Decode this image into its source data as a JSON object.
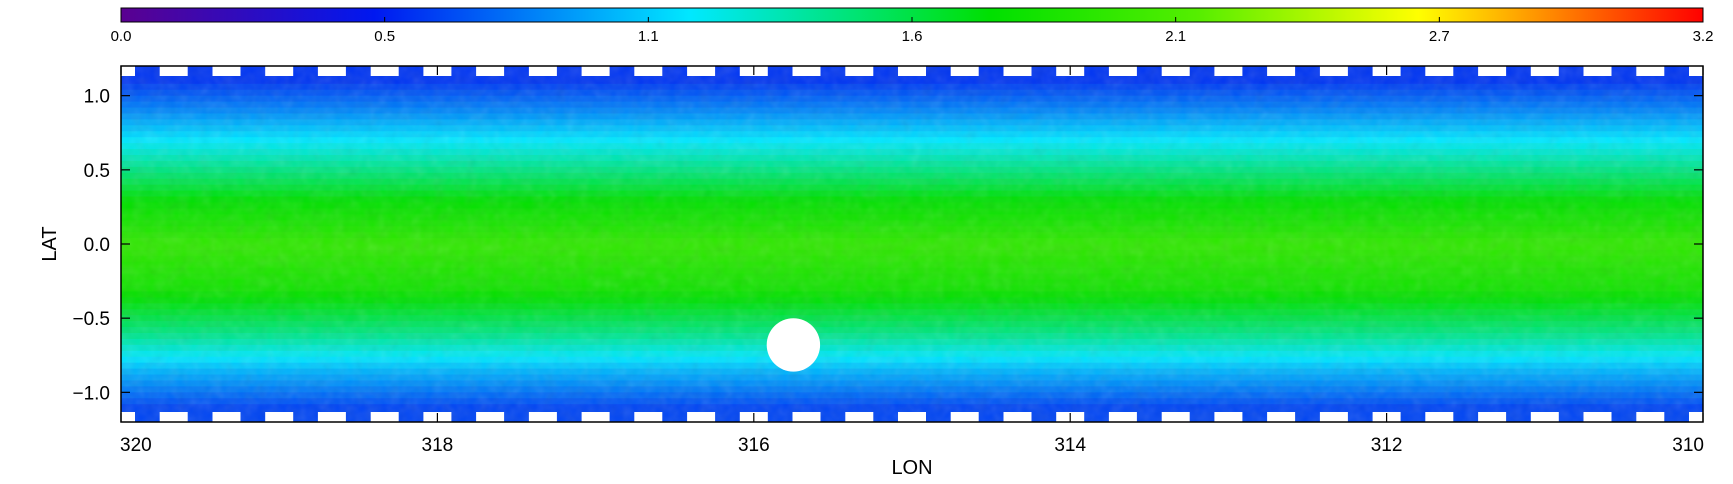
{
  "chart_data": {
    "type": "heatmap",
    "xlabel": "LON",
    "ylabel": "LAT",
    "xlim": [
      320,
      310
    ],
    "ylim": [
      -1.2,
      1.2
    ],
    "x_ticks": [
      "320",
      "318",
      "316",
      "314",
      "312",
      "310"
    ],
    "x_tick_values": [
      320,
      318,
      316,
      314,
      312,
      310
    ],
    "y_ticks": [
      "1.0",
      "0.5",
      "0.0",
      "−0.5",
      "−1.0"
    ],
    "y_tick_values": [
      1.0,
      0.5,
      0.0,
      -0.5,
      -1.0
    ],
    "colorbar": {
      "range": [
        0.0,
        3.2
      ],
      "tick_labels": [
        "0.0",
        "0.5",
        "1.1",
        "1.6",
        "2.1",
        "2.7",
        "3.2"
      ],
      "tick_values": [
        0.0,
        0.5,
        1.1,
        1.6,
        2.1,
        2.7,
        3.2
      ],
      "colormap": "rainbow",
      "colors": [
        "#5a0090",
        "#0018f0",
        "#00e8ff",
        "#00e000",
        "#ffff00",
        "#ff0000"
      ]
    },
    "value_bands_by_latitude": [
      {
        "lat": 1.1,
        "value": 0.6
      },
      {
        "lat": 0.9,
        "value": 0.85
      },
      {
        "lat": 0.6,
        "value": 1.3
      },
      {
        "lat": 0.3,
        "value": 1.75
      },
      {
        "lat": 0.0,
        "value": 2.0
      },
      {
        "lat": -0.3,
        "value": 1.85
      },
      {
        "lat": -0.6,
        "value": 1.45
      },
      {
        "lat": -0.85,
        "value": 1.0
      },
      {
        "lat": -1.1,
        "value": 0.65
      }
    ],
    "masked_region": {
      "lon": 315.75,
      "lat": -0.68,
      "radius_deg": 0.18
    }
  }
}
